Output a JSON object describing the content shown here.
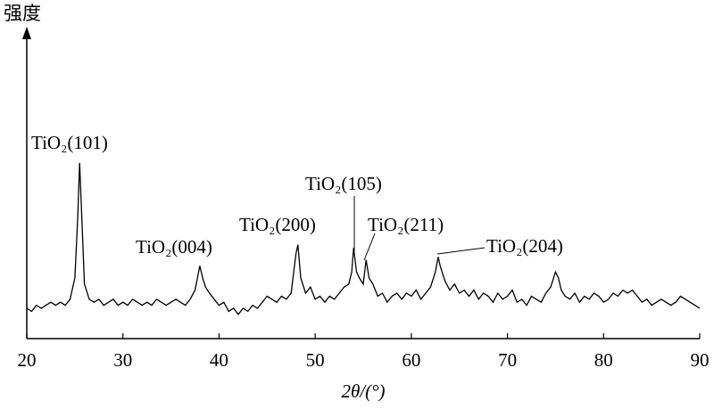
{
  "chart_data": {
    "type": "line",
    "y_label": "强度",
    "x_label": "2θ/(°)",
    "xlim": [
      20,
      90
    ],
    "xticks": [
      20,
      30,
      40,
      50,
      60,
      70,
      80,
      90
    ],
    "ylim": [
      0,
      100
    ],
    "color": "#000000",
    "annotations": [
      "TiO₂(101)",
      "TiO₂(004)",
      "TiO₂(200)",
      "TiO₂(105)",
      "TiO₂(211)",
      "TiO₂(204)"
    ],
    "x": [
      20,
      20.5,
      21,
      21.5,
      22,
      22.5,
      23,
      23.5,
      24,
      24.5,
      25,
      25.3,
      25.5,
      25.7,
      26,
      26.5,
      27,
      27.5,
      28,
      28.5,
      29,
      29.5,
      30,
      30.5,
      31,
      31.5,
      32,
      32.5,
      33,
      33.5,
      34,
      34.5,
      35,
      35.5,
      36,
      36.5,
      37,
      37.5,
      38,
      38.3,
      38.6,
      39,
      39.5,
      40,
      40.5,
      41,
      41.5,
      42,
      42.5,
      43,
      43.5,
      44,
      44.5,
      45,
      45.5,
      46,
      46.5,
      47,
      47.5,
      48,
      48.2,
      48.5,
      49,
      49.5,
      50,
      50.5,
      51,
      51.5,
      52,
      52.5,
      53,
      53.5,
      53.8,
      54,
      54.3,
      54.6,
      55,
      55.3,
      55.6,
      56,
      56.5,
      57,
      57.5,
      58,
      58.5,
      59,
      59.5,
      60,
      60.5,
      61,
      61.5,
      62,
      62.5,
      62.8,
      63,
      63.5,
      64,
      64.5,
      65,
      65.5,
      66,
      66.5,
      67,
      67.5,
      68,
      68.5,
      69,
      69.5,
      70,
      70.5,
      71,
      71.5,
      72,
      72.5,
      73,
      73.5,
      74,
      74.5,
      75,
      75.3,
      75.6,
      76,
      76.5,
      77,
      77.5,
      78,
      78.5,
      79,
      79.5,
      80,
      80.5,
      81,
      81.5,
      82,
      82.5,
      83,
      83.5,
      84,
      84.5,
      85,
      85.5,
      86,
      86.5,
      87,
      87.5,
      88,
      88.5,
      89,
      89.5,
      90
    ],
    "values": [
      10,
      9,
      11,
      10,
      11,
      12,
      11,
      12,
      11,
      13,
      20,
      40,
      58,
      42,
      18,
      13,
      12,
      13,
      11,
      12,
      13,
      11,
      12,
      11,
      13,
      12,
      11,
      12,
      11,
      13,
      12,
      11,
      12,
      13,
      12,
      11,
      13,
      16,
      24,
      20,
      17,
      15,
      13,
      11,
      12,
      9,
      10,
      8,
      10,
      9,
      11,
      10,
      12,
      14,
      13,
      12,
      14,
      13,
      15,
      28,
      31,
      20,
      15,
      17,
      13,
      14,
      12,
      14,
      13,
      15,
      17,
      18,
      22,
      30,
      22,
      20,
      18,
      26,
      20,
      18,
      14,
      15,
      12,
      14,
      15,
      13,
      15,
      14,
      16,
      13,
      15,
      17,
      22,
      27,
      24,
      19,
      16,
      18,
      15,
      16,
      14,
      16,
      13,
      15,
      14,
      12,
      15,
      13,
      14,
      16,
      12,
      13,
      11,
      14,
      13,
      12,
      15,
      17,
      22,
      20,
      16,
      14,
      13,
      15,
      12,
      14,
      13,
      15,
      14,
      12,
      13,
      15,
      14,
      16,
      15,
      16,
      14,
      12,
      13,
      11,
      12,
      13,
      12,
      11,
      12,
      14,
      13,
      12,
      11,
      10
    ]
  }
}
